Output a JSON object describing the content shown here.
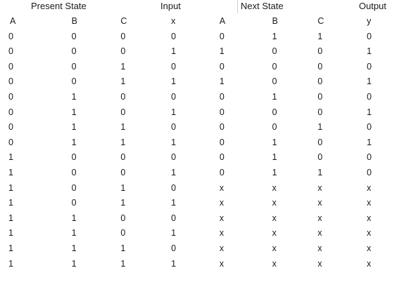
{
  "group_headers": {
    "present_state": "Present State",
    "input": "Input",
    "next_state": "Next State",
    "output": "Output"
  },
  "columns": [
    "A",
    "B",
    "C",
    "x",
    "A",
    "B",
    "C",
    "y"
  ],
  "rows": [
    [
      "0",
      "0",
      "0",
      "0",
      "0",
      "1",
      "1",
      "0"
    ],
    [
      "0",
      "0",
      "0",
      "1",
      "1",
      "0",
      "0",
      "1"
    ],
    [
      "0",
      "0",
      "1",
      "0",
      "0",
      "0",
      "0",
      "0"
    ],
    [
      "0",
      "0",
      "1",
      "1",
      "1",
      "0",
      "0",
      "1"
    ],
    [
      "0",
      "1",
      "0",
      "0",
      "0",
      "1",
      "0",
      "0"
    ],
    [
      "0",
      "1",
      "0",
      "1",
      "0",
      "0",
      "0",
      "1"
    ],
    [
      "0",
      "1",
      "1",
      "0",
      "0",
      "0",
      "1",
      "0"
    ],
    [
      "0",
      "1",
      "1",
      "1",
      "0",
      "1",
      "0",
      "1"
    ],
    [
      "1",
      "0",
      "0",
      "0",
      "0",
      "1",
      "0",
      "0"
    ],
    [
      "1",
      "0",
      "0",
      "1",
      "0",
      "1",
      "1",
      "0"
    ],
    [
      "1",
      "0",
      "1",
      "0",
      "x",
      "x",
      "x",
      "x"
    ],
    [
      "1",
      "0",
      "1",
      "1",
      "x",
      "x",
      "x",
      "x"
    ],
    [
      "1",
      "1",
      "0",
      "0",
      "x",
      "x",
      "x",
      "x"
    ],
    [
      "1",
      "1",
      "0",
      "1",
      "x",
      "x",
      "x",
      "x"
    ],
    [
      "1",
      "1",
      "1",
      "0",
      "x",
      "x",
      "x",
      "x"
    ],
    [
      "1",
      "1",
      "1",
      "1",
      "x",
      "x",
      "x",
      "x"
    ]
  ]
}
